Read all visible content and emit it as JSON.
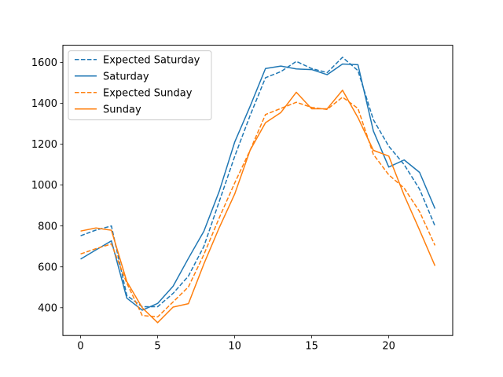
{
  "chart_data": {
    "type": "line",
    "title": "",
    "xlabel": "",
    "ylabel": "",
    "xlim": [
      -1.15,
      24.15
    ],
    "ylim": [
      264,
      1684
    ],
    "xticks": [
      0,
      5,
      10,
      15,
      20
    ],
    "yticks": [
      400,
      600,
      800,
      1000,
      1200,
      1400,
      1600
    ],
    "grid": false,
    "legend_position": "upper-left",
    "x": [
      0,
      1,
      2,
      3,
      4,
      5,
      6,
      7,
      8,
      9,
      10,
      11,
      12,
      13,
      14,
      15,
      16,
      17,
      18,
      19,
      20,
      21,
      22,
      23
    ],
    "series": [
      {
        "name": "Expected Saturday",
        "color": "#1f77b4",
        "style": "dashed",
        "values": [
          752,
          780,
          800,
          460,
          405,
          405,
          470,
          555,
          700,
          920,
          1140,
          1340,
          1525,
          1555,
          1605,
          1570,
          1550,
          1625,
          1560,
          1320,
          1190,
          1100,
          980,
          800
        ]
      },
      {
        "name": "Saturday",
        "color": "#1f77b4",
        "style": "solid",
        "values": [
          638,
          683,
          727,
          447,
          388,
          421,
          505,
          642,
          774,
          970,
          1210,
          1385,
          1570,
          1582,
          1568,
          1565,
          1540,
          1592,
          1589,
          1265,
          1088,
          1123,
          1062,
          885
        ]
      },
      {
        "name": "Expected Sunday",
        "color": "#ff7f0e",
        "style": "dashed",
        "values": [
          663,
          689,
          712,
          520,
          362,
          355,
          428,
          502,
          660,
          840,
          1010,
          1170,
          1345,
          1375,
          1405,
          1380,
          1370,
          1430,
          1375,
          1150,
          1050,
          985,
          870,
          705
        ]
      },
      {
        "name": "Sunday",
        "color": "#ff7f0e",
        "style": "solid",
        "values": [
          775,
          790,
          779,
          528,
          400,
          327,
          403,
          420,
          614,
          792,
          956,
          1170,
          1305,
          1355,
          1454,
          1373,
          1373,
          1464,
          1330,
          1170,
          1142,
          950,
          780,
          605
        ]
      }
    ]
  }
}
